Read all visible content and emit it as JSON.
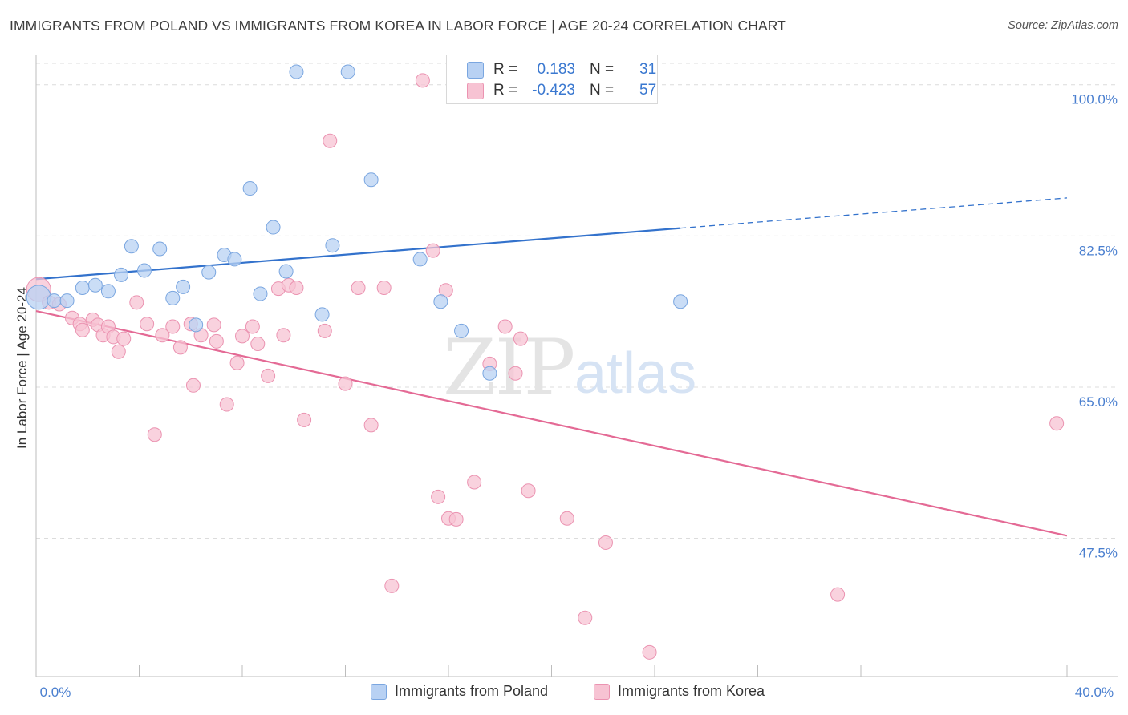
{
  "title": "IMMIGRANTS FROM POLAND VS IMMIGRANTS FROM KOREA IN LABOR FORCE | AGE 20-24 CORRELATION CHART",
  "source": "Source: ZipAtlas.com",
  "watermark": {
    "zip": "ZIP",
    "atlas": "atlas"
  },
  "colors": {
    "poland_fill": "#b8d1f3",
    "poland_stroke": "#7aa6e0",
    "poland_line": "#3372cc",
    "korea_fill": "#f7c3d3",
    "korea_stroke": "#eb93b1",
    "korea_line": "#e46a95",
    "tick_text": "#4a7fcf",
    "grid": "#dcdcdc"
  },
  "legend_top": {
    "rows": [
      {
        "series": "poland",
        "r_label": "R =",
        "r_value": "0.183",
        "n_label": "N =",
        "n_value": "31"
      },
      {
        "series": "korea",
        "r_label": "R =",
        "r_value": "-0.423",
        "n_label": "N =",
        "n_value": "57"
      }
    ]
  },
  "legend_bottom": {
    "items": [
      {
        "series": "poland",
        "label": "Immigrants from Poland"
      },
      {
        "series": "korea",
        "label": "Immigrants from Korea"
      }
    ]
  },
  "chart_data": {
    "type": "scatter",
    "title": "IMMIGRANTS FROM POLAND VS IMMIGRANTS FROM KOREA IN LABOR FORCE | AGE 20-24 CORRELATION CHART",
    "xlabel": "",
    "ylabel": "In Labor Force | Age 20-24",
    "xlim": [
      0,
      40
    ],
    "ylim": [
      31.5,
      103.5
    ],
    "x_tick_labels": [
      {
        "value": 0,
        "label": "0.0%"
      },
      {
        "value": 40,
        "label": "40.0%"
      }
    ],
    "x_minor_ticks": [
      0,
      4,
      8,
      12,
      16,
      20,
      24,
      28,
      32,
      36,
      40
    ],
    "y_ticks": [
      {
        "value": 100,
        "label": "100.0%"
      },
      {
        "value": 82.5,
        "label": "82.5%"
      },
      {
        "value": 65,
        "label": "65.0%"
      },
      {
        "value": 47.5,
        "label": "47.5%"
      }
    ],
    "grid": true,
    "legend_position": "top-center",
    "series": [
      {
        "name": "Immigrants from Poland",
        "key": "poland",
        "r": 0.183,
        "n": 31,
        "trend": {
          "x0": 0,
          "y0": 77.5,
          "x1": 25,
          "y1": 83.4,
          "dash_to_x": 40,
          "dash_to_y": 86.9
        },
        "points": [
          [
            0.1,
            75.4
          ],
          [
            0.7,
            75.0
          ],
          [
            1.2,
            75.0
          ],
          [
            1.8,
            76.5
          ],
          [
            2.3,
            76.8
          ],
          [
            2.8,
            76.1
          ],
          [
            3.3,
            78.0
          ],
          [
            3.7,
            81.3
          ],
          [
            4.2,
            78.5
          ],
          [
            4.8,
            81.0
          ],
          [
            5.3,
            75.3
          ],
          [
            5.7,
            76.6
          ],
          [
            6.2,
            72.2
          ],
          [
            6.7,
            78.3
          ],
          [
            7.3,
            80.3
          ],
          [
            7.7,
            79.8
          ],
          [
            8.3,
            88.0
          ],
          [
            8.7,
            75.8
          ],
          [
            9.2,
            83.5
          ],
          [
            9.7,
            78.4
          ],
          [
            10.1,
            101.5
          ],
          [
            11.1,
            73.4
          ],
          [
            11.5,
            81.4
          ],
          [
            12.1,
            101.5
          ],
          [
            13.0,
            89.0
          ],
          [
            14.9,
            79.8
          ],
          [
            15.7,
            74.9
          ],
          [
            16.5,
            71.5
          ],
          [
            17.6,
            66.6
          ],
          [
            19.9,
            101.5
          ],
          [
            25.0,
            74.9
          ]
        ]
      },
      {
        "name": "Immigrants from Korea",
        "key": "korea",
        "r": -0.423,
        "n": 57,
        "trend": {
          "x0": 0,
          "y0": 73.8,
          "x1": 40,
          "y1": 47.8
        },
        "points": [
          [
            0.1,
            76.3
          ],
          [
            0.5,
            74.8
          ],
          [
            0.9,
            74.6
          ],
          [
            1.4,
            73.0
          ],
          [
            1.7,
            72.3
          ],
          [
            1.8,
            71.6
          ],
          [
            2.2,
            72.8
          ],
          [
            2.4,
            72.2
          ],
          [
            2.6,
            71.0
          ],
          [
            2.8,
            72.0
          ],
          [
            3.0,
            70.8
          ],
          [
            3.2,
            69.1
          ],
          [
            3.4,
            70.6
          ],
          [
            3.9,
            74.8
          ],
          [
            4.3,
            72.3
          ],
          [
            4.6,
            59.5
          ],
          [
            4.9,
            71.0
          ],
          [
            5.3,
            72.0
          ],
          [
            5.6,
            69.6
          ],
          [
            6.0,
            72.3
          ],
          [
            6.1,
            65.2
          ],
          [
            6.4,
            71.0
          ],
          [
            6.9,
            72.2
          ],
          [
            7.0,
            70.3
          ],
          [
            7.4,
            63.0
          ],
          [
            7.8,
            67.8
          ],
          [
            8.0,
            70.9
          ],
          [
            8.4,
            72.0
          ],
          [
            8.6,
            70.0
          ],
          [
            9.0,
            66.3
          ],
          [
            9.4,
            76.4
          ],
          [
            9.6,
            71.0
          ],
          [
            9.8,
            76.8
          ],
          [
            10.1,
            76.5
          ],
          [
            10.4,
            61.2
          ],
          [
            11.2,
            71.5
          ],
          [
            11.4,
            93.5
          ],
          [
            12.0,
            65.4
          ],
          [
            12.5,
            76.5
          ],
          [
            13.0,
            60.6
          ],
          [
            13.5,
            76.5
          ],
          [
            13.8,
            42.0
          ],
          [
            15.0,
            100.5
          ],
          [
            15.4,
            80.8
          ],
          [
            15.6,
            52.3
          ],
          [
            15.9,
            76.2
          ],
          [
            16.0,
            49.8
          ],
          [
            16.3,
            49.7
          ],
          [
            17.0,
            54.0
          ],
          [
            17.6,
            67.7
          ],
          [
            18.2,
            72.0
          ],
          [
            18.6,
            66.6
          ],
          [
            18.8,
            70.6
          ],
          [
            19.1,
            53.0
          ],
          [
            20.6,
            49.8
          ],
          [
            21.3,
            38.3
          ],
          [
            22.1,
            47.0
          ]
        ],
        "extra_points": [
          [
            23.8,
            34.3
          ],
          [
            31.1,
            41.0
          ],
          [
            39.6,
            60.8
          ]
        ]
      }
    ]
  }
}
